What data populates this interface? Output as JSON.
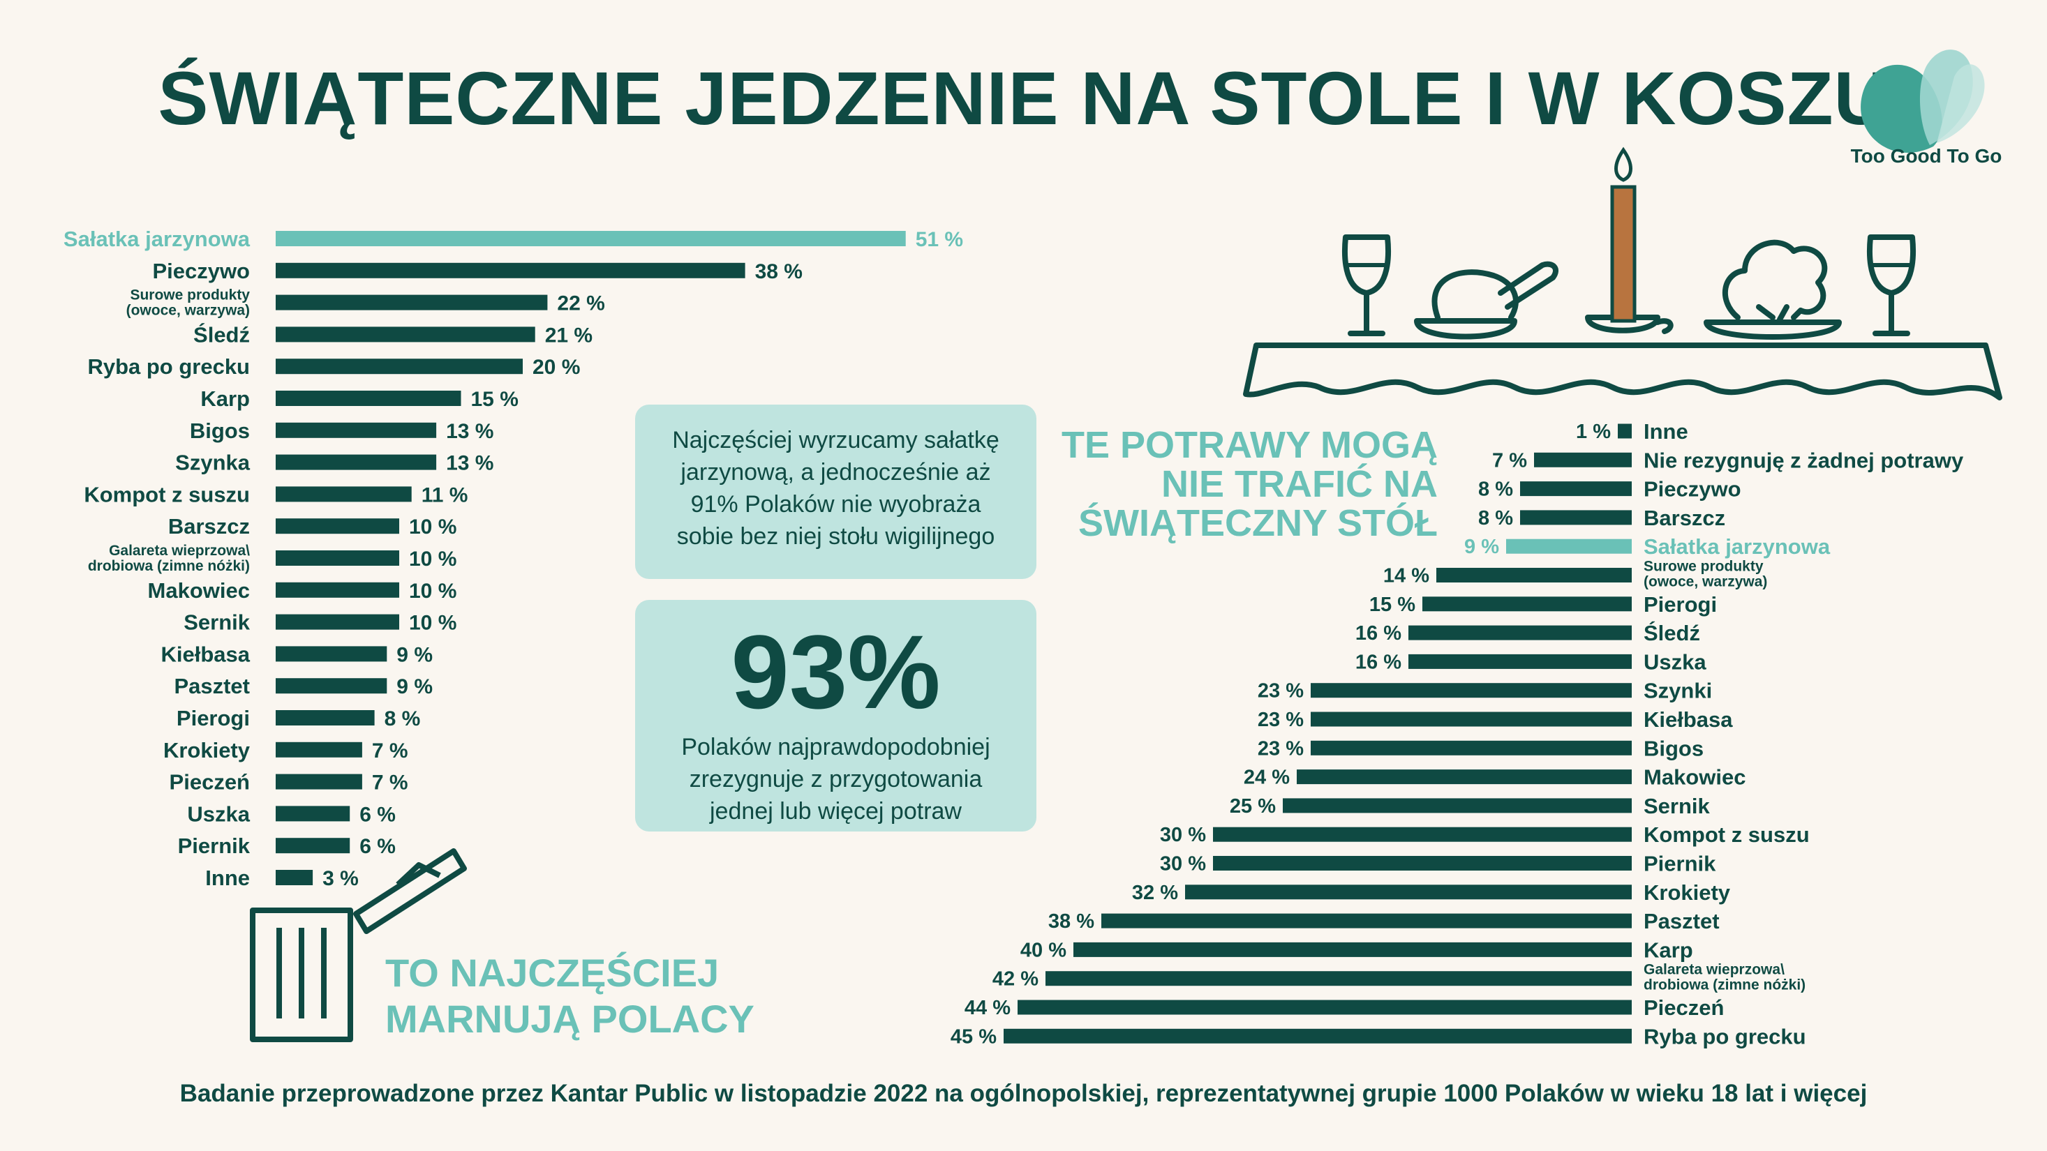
{
  "title": "ŚWIĄTECZNE JEDZENIE NA STOLE I W KOSZU",
  "brand": "Too Good To Go",
  "colors": {
    "dark": "#0f4a43",
    "accent": "#6ac1b7",
    "box": "#bfe4df",
    "background": "#faf6f0"
  },
  "box_top": {
    "lines": [
      "Najczęściej wyrzucamy sałatkę",
      "jarzynową, a jednocześnie aż",
      "91% Polaków nie wyobraża",
      "sobie bez niej stołu wigilijnego"
    ]
  },
  "box_bottom": {
    "big_value": "93%",
    "lines": [
      "Polaków najprawdopodobniej",
      "zrezygnuje z przygotowania",
      "jednej lub więcej potraw"
    ]
  },
  "heading_left": [
    "TO NAJCZĘŚCIEJ",
    "MARNUJĄ POLACY"
  ],
  "heading_right": [
    "TE POTRAWY MOGĄ",
    "NIE TRAFIĆ NA",
    "ŚWIĄTECZNY STÓŁ"
  ],
  "footer": "Badanie przeprowadzone przez Kantar Public w listopadzie 2022 na ogólnopolskiej, reprezentatywnej grupie 1000 Polaków w wieku 18 lat i więcej",
  "icons": [
    "trash-bin-icon",
    "table-setting-icon",
    "candle-icon",
    "wine-glass-icon",
    "roast-chicken-icon",
    "broccoli-icon",
    "too-good-to-go-logo-icon"
  ],
  "chart_data": [
    {
      "type": "bar",
      "orientation": "horizontal",
      "unit": "%",
      "highlight": "Sałatka jarzynowa",
      "categories": [
        [
          "Sałatka jarzynowa"
        ],
        [
          "Pieczywo"
        ],
        [
          "Surowe produkty",
          "(owoce, warzywa)"
        ],
        [
          "Śledź"
        ],
        [
          "Ryba po grecku"
        ],
        [
          "Karp"
        ],
        [
          "Bigos"
        ],
        [
          "Szynka"
        ],
        [
          "Kompot z suszu"
        ],
        [
          "Barszcz"
        ],
        [
          "Galareta wieprzowa\\",
          "drobiowa (zimne nóżki)"
        ],
        [
          "Makowiec"
        ],
        [
          "Sernik"
        ],
        [
          "Kiełbasa"
        ],
        [
          "Pasztet"
        ],
        [
          "Pierogi"
        ],
        [
          "Krokiety"
        ],
        [
          "Pieczeń"
        ],
        [
          "Uszka"
        ],
        [
          "Piernik"
        ],
        [
          "Inne"
        ]
      ],
      "values": [
        51,
        38,
        22,
        21,
        20,
        15,
        13,
        13,
        11,
        10,
        10,
        10,
        10,
        9,
        9,
        8,
        7,
        7,
        6,
        6,
        3
      ],
      "labels": [
        "51 %",
        "38 %",
        "22 %",
        "21 %",
        "20 %",
        "15 %",
        "13 %",
        "13 %",
        "11 %",
        "10 %",
        "10 %",
        "10 %",
        "10 %",
        "9 %",
        "9 %",
        "8 %",
        "7 %",
        "7 %",
        "6 %",
        "6 %",
        "3 %"
      ]
    },
    {
      "type": "bar",
      "orientation": "horizontal",
      "unit": "%",
      "highlight": "Sałatka jarzynowa",
      "categories": [
        [
          "Inne"
        ],
        [
          "Nie rezygnuję z żadnej potrawy"
        ],
        [
          "Pieczywo"
        ],
        [
          "Barszcz"
        ],
        [
          "Sałatka jarzynowa"
        ],
        [
          "Surowe produkty",
          "(owoce, warzywa)"
        ],
        [
          "Pierogi"
        ],
        [
          "Śledź"
        ],
        [
          "Uszka"
        ],
        [
          "Szynki"
        ],
        [
          "Kiełbasa"
        ],
        [
          "Bigos"
        ],
        [
          "Makowiec"
        ],
        [
          "Sernik"
        ],
        [
          "Kompot z suszu"
        ],
        [
          "Piernik"
        ],
        [
          "Krokiety"
        ],
        [
          "Pasztet"
        ],
        [
          "Karp"
        ],
        [
          "Galareta wieprzowa\\",
          "drobiowa (zimne nóżki)"
        ],
        [
          "Pieczeń"
        ],
        [
          "Ryba po grecku"
        ]
      ],
      "values": [
        1,
        7,
        8,
        8,
        9,
        14,
        15,
        16,
        16,
        23,
        23,
        23,
        24,
        25,
        30,
        30,
        32,
        38,
        40,
        42,
        44,
        45
      ],
      "labels": [
        "1 %",
        "7 %",
        "8 %",
        "8 %",
        "9 %",
        "14 %",
        "15 %",
        "16 %",
        "16 %",
        "23 %",
        "23 %",
        "23 %",
        "24 %",
        "25 %",
        "30 %",
        "30 %",
        "32 %",
        "38 %",
        "40 %",
        "42 %",
        "44 %",
        "45 %"
      ]
    }
  ]
}
